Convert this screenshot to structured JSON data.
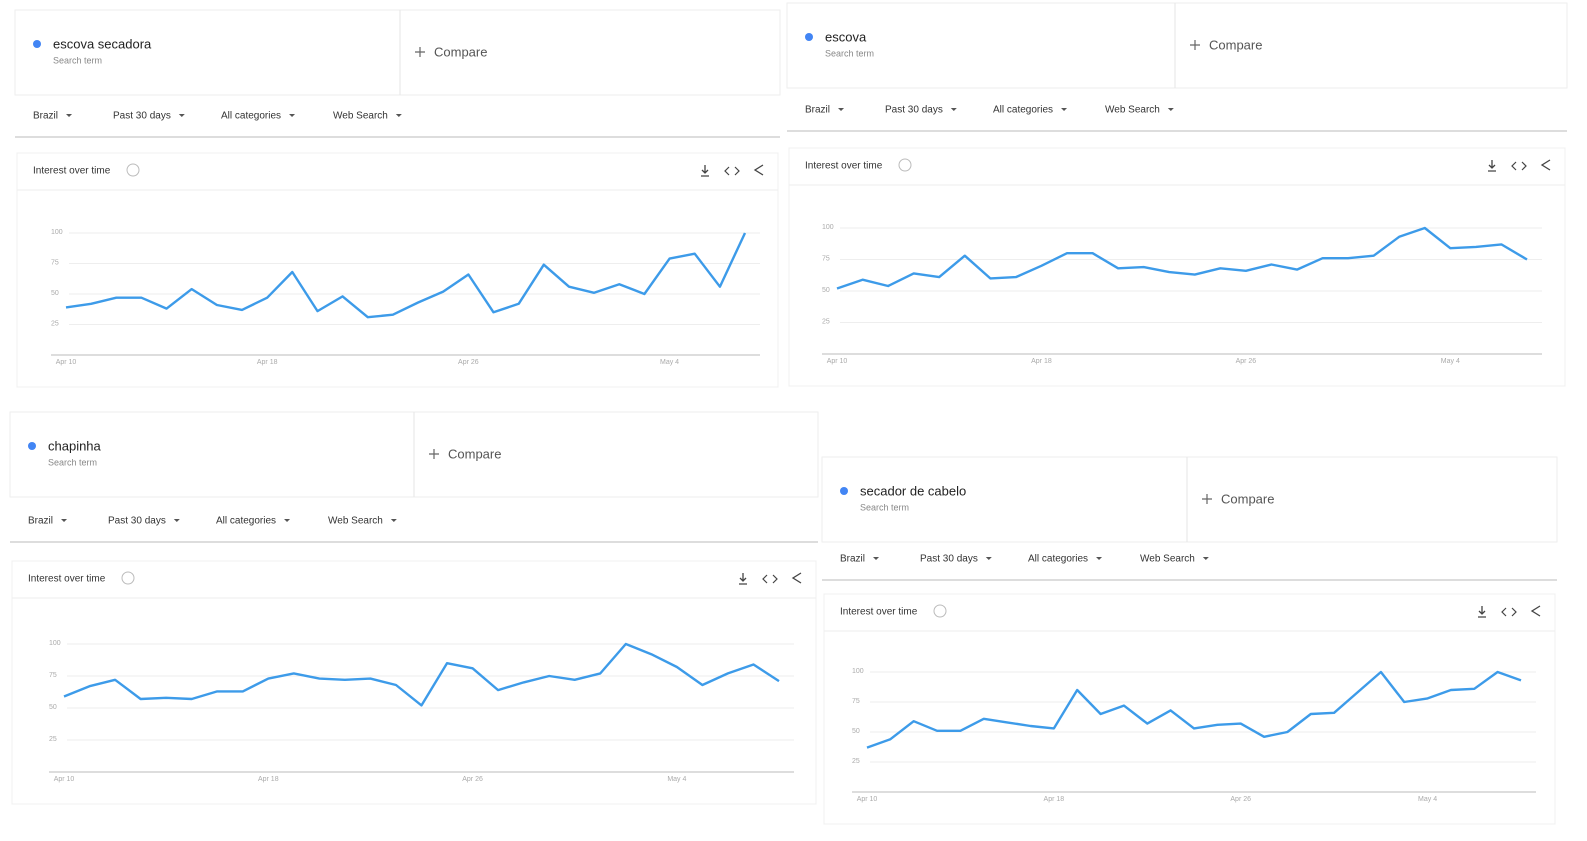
{
  "panels": [
    {
      "term": "escova secadora",
      "term_type": "Search term",
      "compare": "Compare",
      "filters": [
        "Brazil",
        "Past 30 days",
        "All categories",
        "Web Search"
      ]
    },
    {
      "term": "escova",
      "term_type": "Search term",
      "compare": "Compare",
      "filters": [
        "Brazil",
        "Past 30 days",
        "All categories",
        "Web Search"
      ]
    },
    {
      "term": "chapinha",
      "term_type": "Search term",
      "compare": "Compare",
      "filters": [
        "Brazil",
        "Past 30 days",
        "All categories",
        "Web Search"
      ]
    },
    {
      "term": "secador de cabelo",
      "term_type": "Search term",
      "compare": "Compare",
      "filters": [
        "Brazil",
        "Past 30 days",
        "All categories",
        "Web Search"
      ]
    }
  ],
  "chart_data": [
    {
      "type": "line",
      "title": "Interest over time",
      "categories": [
        "Apr 10",
        null,
        null,
        null,
        null,
        null,
        null,
        null,
        "Apr 18",
        null,
        null,
        null,
        null,
        null,
        null,
        null,
        "Apr 26",
        null,
        null,
        null,
        null,
        null,
        null,
        null,
        "May 4",
        null,
        null,
        null
      ],
      "series": [
        {
          "color": "#3d9be9",
          "values": [
            39,
            42,
            47,
            47,
            38,
            54,
            41,
            37,
            47,
            68,
            36,
            48,
            31,
            33,
            43,
            52,
            66,
            35,
            42,
            74,
            56,
            51,
            58,
            50,
            79,
            83,
            56,
            100
          ]
        }
      ],
      "ylim": [
        0,
        100
      ],
      "yticks": [
        25,
        50,
        75,
        100
      ],
      "grid": true
    },
    {
      "type": "line",
      "title": "Interest over time",
      "categories": [
        "Apr 10",
        null,
        null,
        null,
        null,
        null,
        null,
        null,
        "Apr 18",
        null,
        null,
        null,
        null,
        null,
        null,
        null,
        "Apr 26",
        null,
        null,
        null,
        null,
        null,
        null,
        null,
        "May 4",
        null,
        null,
        null
      ],
      "series": [
        {
          "color": "#3d9be9",
          "values": [
            52,
            59,
            54,
            64,
            61,
            78,
            60,
            61,
            70,
            80,
            80,
            68,
            69,
            65,
            63,
            68,
            66,
            71,
            67,
            76,
            76,
            78,
            93,
            100,
            84,
            85,
            87,
            75
          ]
        }
      ],
      "ylim": [
        0,
        100
      ],
      "yticks": [
        25,
        50,
        75,
        100
      ],
      "grid": true
    },
    {
      "type": "line",
      "title": "Interest over time",
      "categories": [
        "Apr 10",
        null,
        null,
        null,
        null,
        null,
        null,
        null,
        "Apr 18",
        null,
        null,
        null,
        null,
        null,
        null,
        null,
        "Apr 26",
        null,
        null,
        null,
        null,
        null,
        null,
        null,
        "May 4",
        null,
        null,
        null,
        null
      ],
      "series": [
        {
          "color": "#3d9be9",
          "values": [
            59,
            67,
            72,
            57,
            58,
            57,
            63,
            63,
            73,
            77,
            73,
            72,
            73,
            68,
            52,
            85,
            81,
            64,
            70,
            75,
            72,
            77,
            100,
            92,
            82,
            68,
            77,
            84,
            71
          ]
        }
      ],
      "ylim": [
        0,
        100
      ],
      "yticks": [
        25,
        50,
        75,
        100
      ],
      "grid": true
    },
    {
      "type": "line",
      "title": "Interest over time",
      "categories": [
        "Apr 10",
        null,
        null,
        null,
        null,
        null,
        null,
        null,
        "Apr 18",
        null,
        null,
        null,
        null,
        null,
        null,
        null,
        "Apr 26",
        null,
        null,
        null,
        null,
        null,
        null,
        null,
        "May 4",
        null,
        null,
        null,
        null
      ],
      "series": [
        {
          "color": "#3d9be9",
          "values": [
            37,
            44,
            59,
            51,
            51,
            61,
            58,
            55,
            53,
            85,
            65,
            72,
            57,
            68,
            53,
            56,
            57,
            46,
            50,
            65,
            66,
            83,
            100,
            75,
            78,
            85,
            86,
            100,
            93
          ]
        }
      ],
      "ylim": [
        0,
        100
      ],
      "yticks": [
        25,
        50,
        75,
        100
      ],
      "grid": true
    }
  ]
}
